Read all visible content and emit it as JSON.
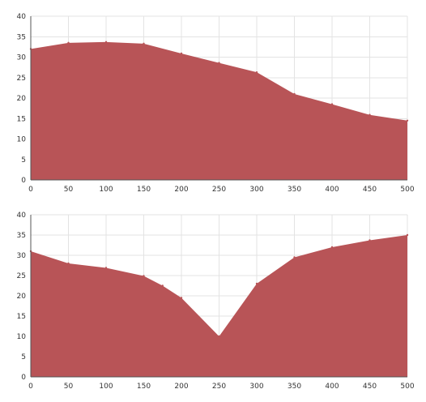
{
  "chart_data": [
    {
      "type": "area",
      "x": [
        0,
        50,
        100,
        150,
        200,
        250,
        300,
        350,
        400,
        450,
        500
      ],
      "series": [
        {
          "values": [
            32,
            33.5,
            33.7,
            33.3,
            30.9,
            28.6,
            26.3,
            21,
            18.5,
            15.9,
            14.5
          ]
        }
      ],
      "xlim": [
        0,
        500
      ],
      "ylim": [
        0,
        40
      ],
      "x_ticks": [
        "0",
        "50",
        "100",
        "150",
        "200",
        "250",
        "300",
        "350",
        "400",
        "450",
        "500"
      ],
      "y_ticks": [
        "0",
        "5",
        "10",
        "15",
        "20",
        "25",
        "30",
        "35",
        "40"
      ],
      "grid": true,
      "fill_color": "#b85457"
    },
    {
      "type": "area",
      "x": [
        0,
        50,
        100,
        150,
        175,
        200,
        250,
        300,
        350,
        400,
        450,
        500
      ],
      "series": [
        {
          "values": [
            31,
            28,
            26.9,
            24.9,
            22.5,
            19.5,
            10,
            23,
            29.5,
            32,
            33.7,
            35
          ]
        }
      ],
      "xlim": [
        0,
        500
      ],
      "ylim": [
        0,
        40
      ],
      "x_ticks": [
        "0",
        "50",
        "100",
        "150",
        "200",
        "250",
        "300",
        "350",
        "400",
        "450",
        "500"
      ],
      "y_ticks": [
        "0",
        "5",
        "10",
        "15",
        "20",
        "25",
        "30",
        "35",
        "40"
      ],
      "grid": true,
      "fill_color": "#b85457"
    }
  ]
}
